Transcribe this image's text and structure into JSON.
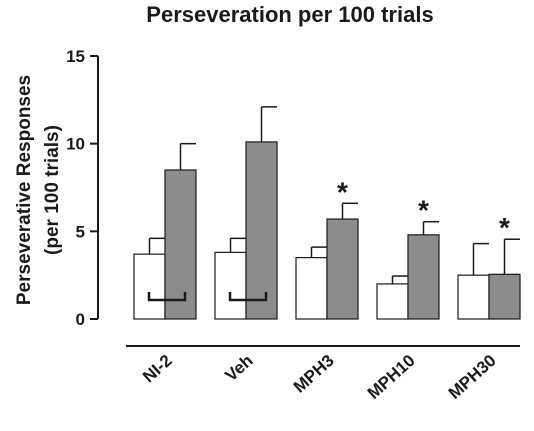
{
  "chart_data": {
    "type": "bar",
    "title": "Perseveration per 100 trials",
    "ylabel_line1": "Perseverative Responses",
    "ylabel_line2": "(per 100 trials)",
    "xlabel": "",
    "ylim": [
      0,
      15
    ],
    "yticks": [
      "0",
      "5",
      "10",
      "15"
    ],
    "ytick_values": [
      0,
      5,
      10,
      15
    ],
    "categories": [
      "NI-2",
      "Veh",
      "MPH3",
      "MPH10",
      "MPH30"
    ],
    "series": [
      {
        "color": "#ffffff",
        "values": [
          3.7,
          3.8,
          3.5,
          2.0,
          2.5
        ],
        "errors": [
          0.9,
          0.8,
          0.6,
          0.45,
          1.8
        ]
      },
      {
        "color": "#8c8c8c",
        "values": [
          8.5,
          10.1,
          5.7,
          4.8,
          2.55
        ],
        "errors": [
          1.5,
          2.0,
          0.9,
          0.75,
          2.0
        ]
      }
    ],
    "significance": [
      "",
      "",
      "*",
      "*",
      "*"
    ],
    "brackets": [
      true,
      true,
      false,
      false,
      false
    ],
    "grid": false,
    "legend": "none"
  }
}
